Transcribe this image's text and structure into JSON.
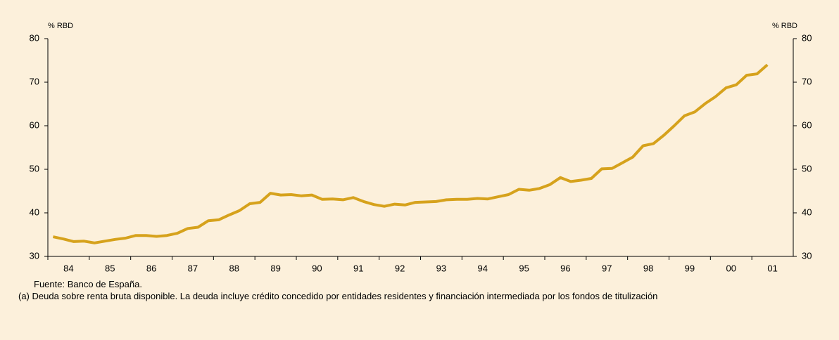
{
  "chart_data": {
    "type": "line",
    "ylabel": "% RBD",
    "y2label": "% RBD",
    "categories": [
      null,
      "84",
      null,
      null,
      null,
      "85",
      null,
      null,
      null,
      "86",
      null,
      null,
      null,
      "87",
      null,
      null,
      null,
      "88",
      null,
      null,
      null,
      "89",
      null,
      null,
      null,
      "90",
      null,
      null,
      null,
      "91",
      null,
      null,
      null,
      "92",
      null,
      null,
      null,
      "93",
      null,
      null,
      null,
      "94",
      null,
      null,
      null,
      "95",
      null,
      null,
      null,
      "96",
      null,
      null,
      null,
      "97",
      null,
      null,
      null,
      "98",
      null,
      null,
      null,
      "99",
      null,
      null,
      null,
      "00",
      null,
      null,
      null,
      "01"
    ],
    "series": [
      {
        "name": "Deuda",
        "color": "#d6a21c",
        "values": [
          34.5,
          34.0,
          33.4,
          33.5,
          33.1,
          33.5,
          33.9,
          34.2,
          34.8,
          34.8,
          34.6,
          34.8,
          35.3,
          36.4,
          36.7,
          38.2,
          38.4,
          39.5,
          40.5,
          42.1,
          42.4,
          44.5,
          44.1,
          44.2,
          43.9,
          44.1,
          43.1,
          43.2,
          43.0,
          43.5,
          42.6,
          41.9,
          41.5,
          42.0,
          41.8,
          42.4,
          42.5,
          42.6,
          43.0,
          43.1,
          43.1,
          43.3,
          43.2,
          43.7,
          44.2,
          45.4,
          45.2,
          45.6,
          46.5,
          48.1,
          47.2,
          47.5,
          47.9,
          50.1,
          50.2,
          51.5,
          52.8,
          55.4,
          55.9,
          57.8,
          60.0,
          62.3,
          63.2,
          65.1,
          66.7,
          68.7,
          69.4,
          71.6,
          71.9,
          74.0
        ]
      }
    ],
    "ylim": [
      30,
      80
    ],
    "yticks": [
      30,
      40,
      50,
      60,
      70,
      80
    ],
    "y2lim": [
      30,
      80
    ],
    "y2ticks": [
      30,
      40,
      50,
      60,
      70,
      80
    ],
    "source": "Fuente: Banco de España.",
    "note": "(a)   Deuda sobre renta bruta disponible. La deuda incluye crédito concedido por entidades residentes y financiación intermediada por los fondos de titulización"
  }
}
